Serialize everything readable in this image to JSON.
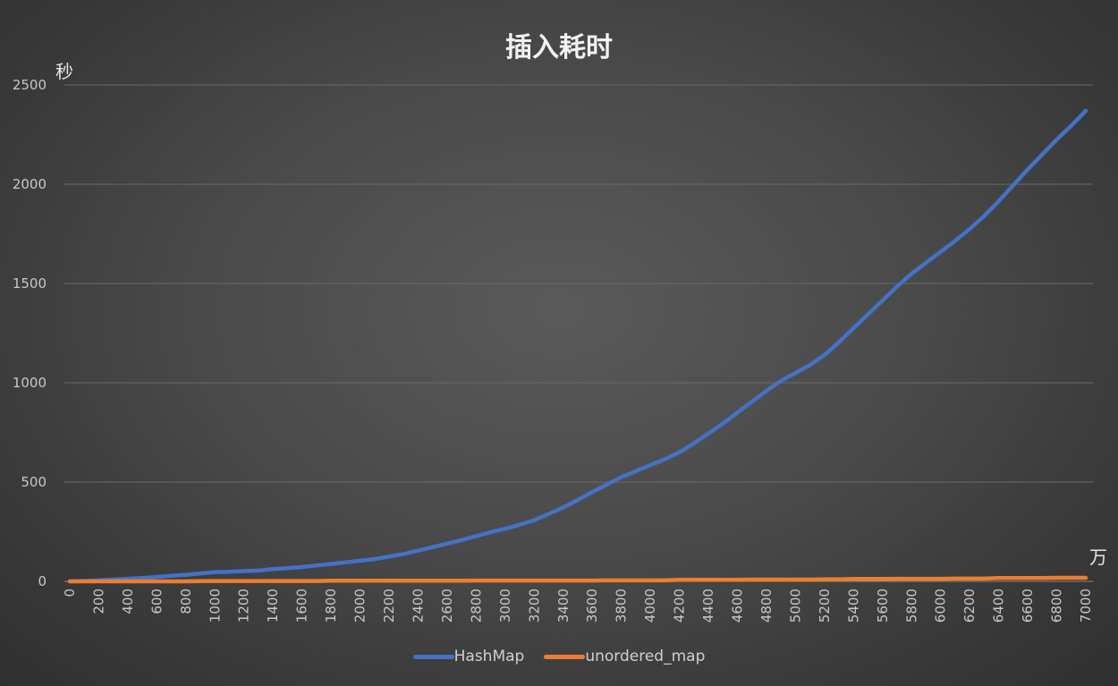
{
  "chart_data": {
    "type": "line",
    "title": "插入耗时",
    "xlabel": "万",
    "ylabel": "秒",
    "ylim": [
      0,
      2500
    ],
    "yticks": [
      0,
      500,
      1000,
      1500,
      2000,
      2500
    ],
    "grid": true,
    "legend_position": "bottom",
    "x": [
      0,
      100,
      200,
      300,
      400,
      500,
      600,
      700,
      800,
      900,
      1000,
      1100,
      1200,
      1300,
      1400,
      1500,
      1600,
      1700,
      1800,
      1900,
      2000,
      2100,
      2200,
      2300,
      2400,
      2500,
      2600,
      2700,
      2800,
      2900,
      3000,
      3100,
      3200,
      3300,
      3400,
      3500,
      3600,
      3700,
      3800,
      3900,
      4000,
      4100,
      4200,
      4300,
      4400,
      4500,
      4600,
      4700,
      4800,
      4900,
      5000,
      5100,
      5200,
      5300,
      5400,
      5500,
      5600,
      5700,
      5800,
      5900,
      6000,
      6100,
      6200,
      6300,
      6400,
      6500,
      6600,
      6700,
      6800,
      6900,
      7000
    ],
    "xtick_labels": [
      "0",
      "200",
      "400",
      "600",
      "800",
      "1000",
      "1200",
      "1400",
      "1600",
      "1800",
      "2000",
      "2200",
      "2400",
      "2600",
      "2800",
      "3000",
      "3200",
      "3400",
      "3600",
      "3800",
      "4000",
      "4200",
      "4400",
      "4600",
      "4800",
      "5000",
      "5200",
      "5400",
      "5600",
      "5800",
      "6000",
      "6200",
      "6400",
      "6600",
      "6800",
      "7000"
    ],
    "series": [
      {
        "name": "HashMap",
        "color": "#4472c4",
        "values": [
          0,
          2,
          5,
          9,
          13,
          17,
          22,
          28,
          33,
          40,
          47,
          48,
          52,
          54,
          62,
          66,
          72,
          80,
          88,
          96,
          104,
          112,
          125,
          138,
          155,
          172,
          190,
          208,
          228,
          248,
          265,
          285,
          308,
          340,
          372,
          410,
          450,
          488,
          525,
          555,
          585,
          615,
          650,
          695,
          745,
          795,
          850,
          905,
          960,
          1010,
          1050,
          1090,
          1140,
          1205,
          1275,
          1345,
          1415,
          1485,
          1550,
          1605,
          1660,
          1715,
          1775,
          1840,
          1915,
          1995,
          2075,
          2150,
          2225,
          2295,
          2370
        ]
      },
      {
        "name": "unordered_map",
        "color": "#ed7d31",
        "values": [
          0,
          0,
          0,
          0,
          0,
          0,
          0,
          0,
          0,
          1,
          2,
          2,
          2,
          2,
          2,
          2,
          2,
          2,
          3,
          3,
          3,
          3,
          3,
          3,
          3,
          3,
          3,
          3,
          4,
          4,
          4,
          4,
          4,
          4,
          4,
          4,
          4,
          5,
          5,
          5,
          5,
          5,
          8,
          8,
          8,
          8,
          8,
          9,
          9,
          9,
          9,
          9,
          10,
          10,
          12,
          12,
          12,
          13,
          13,
          13,
          13,
          14,
          14,
          14,
          17,
          17,
          17,
          17,
          18,
          18,
          18
        ]
      }
    ]
  }
}
